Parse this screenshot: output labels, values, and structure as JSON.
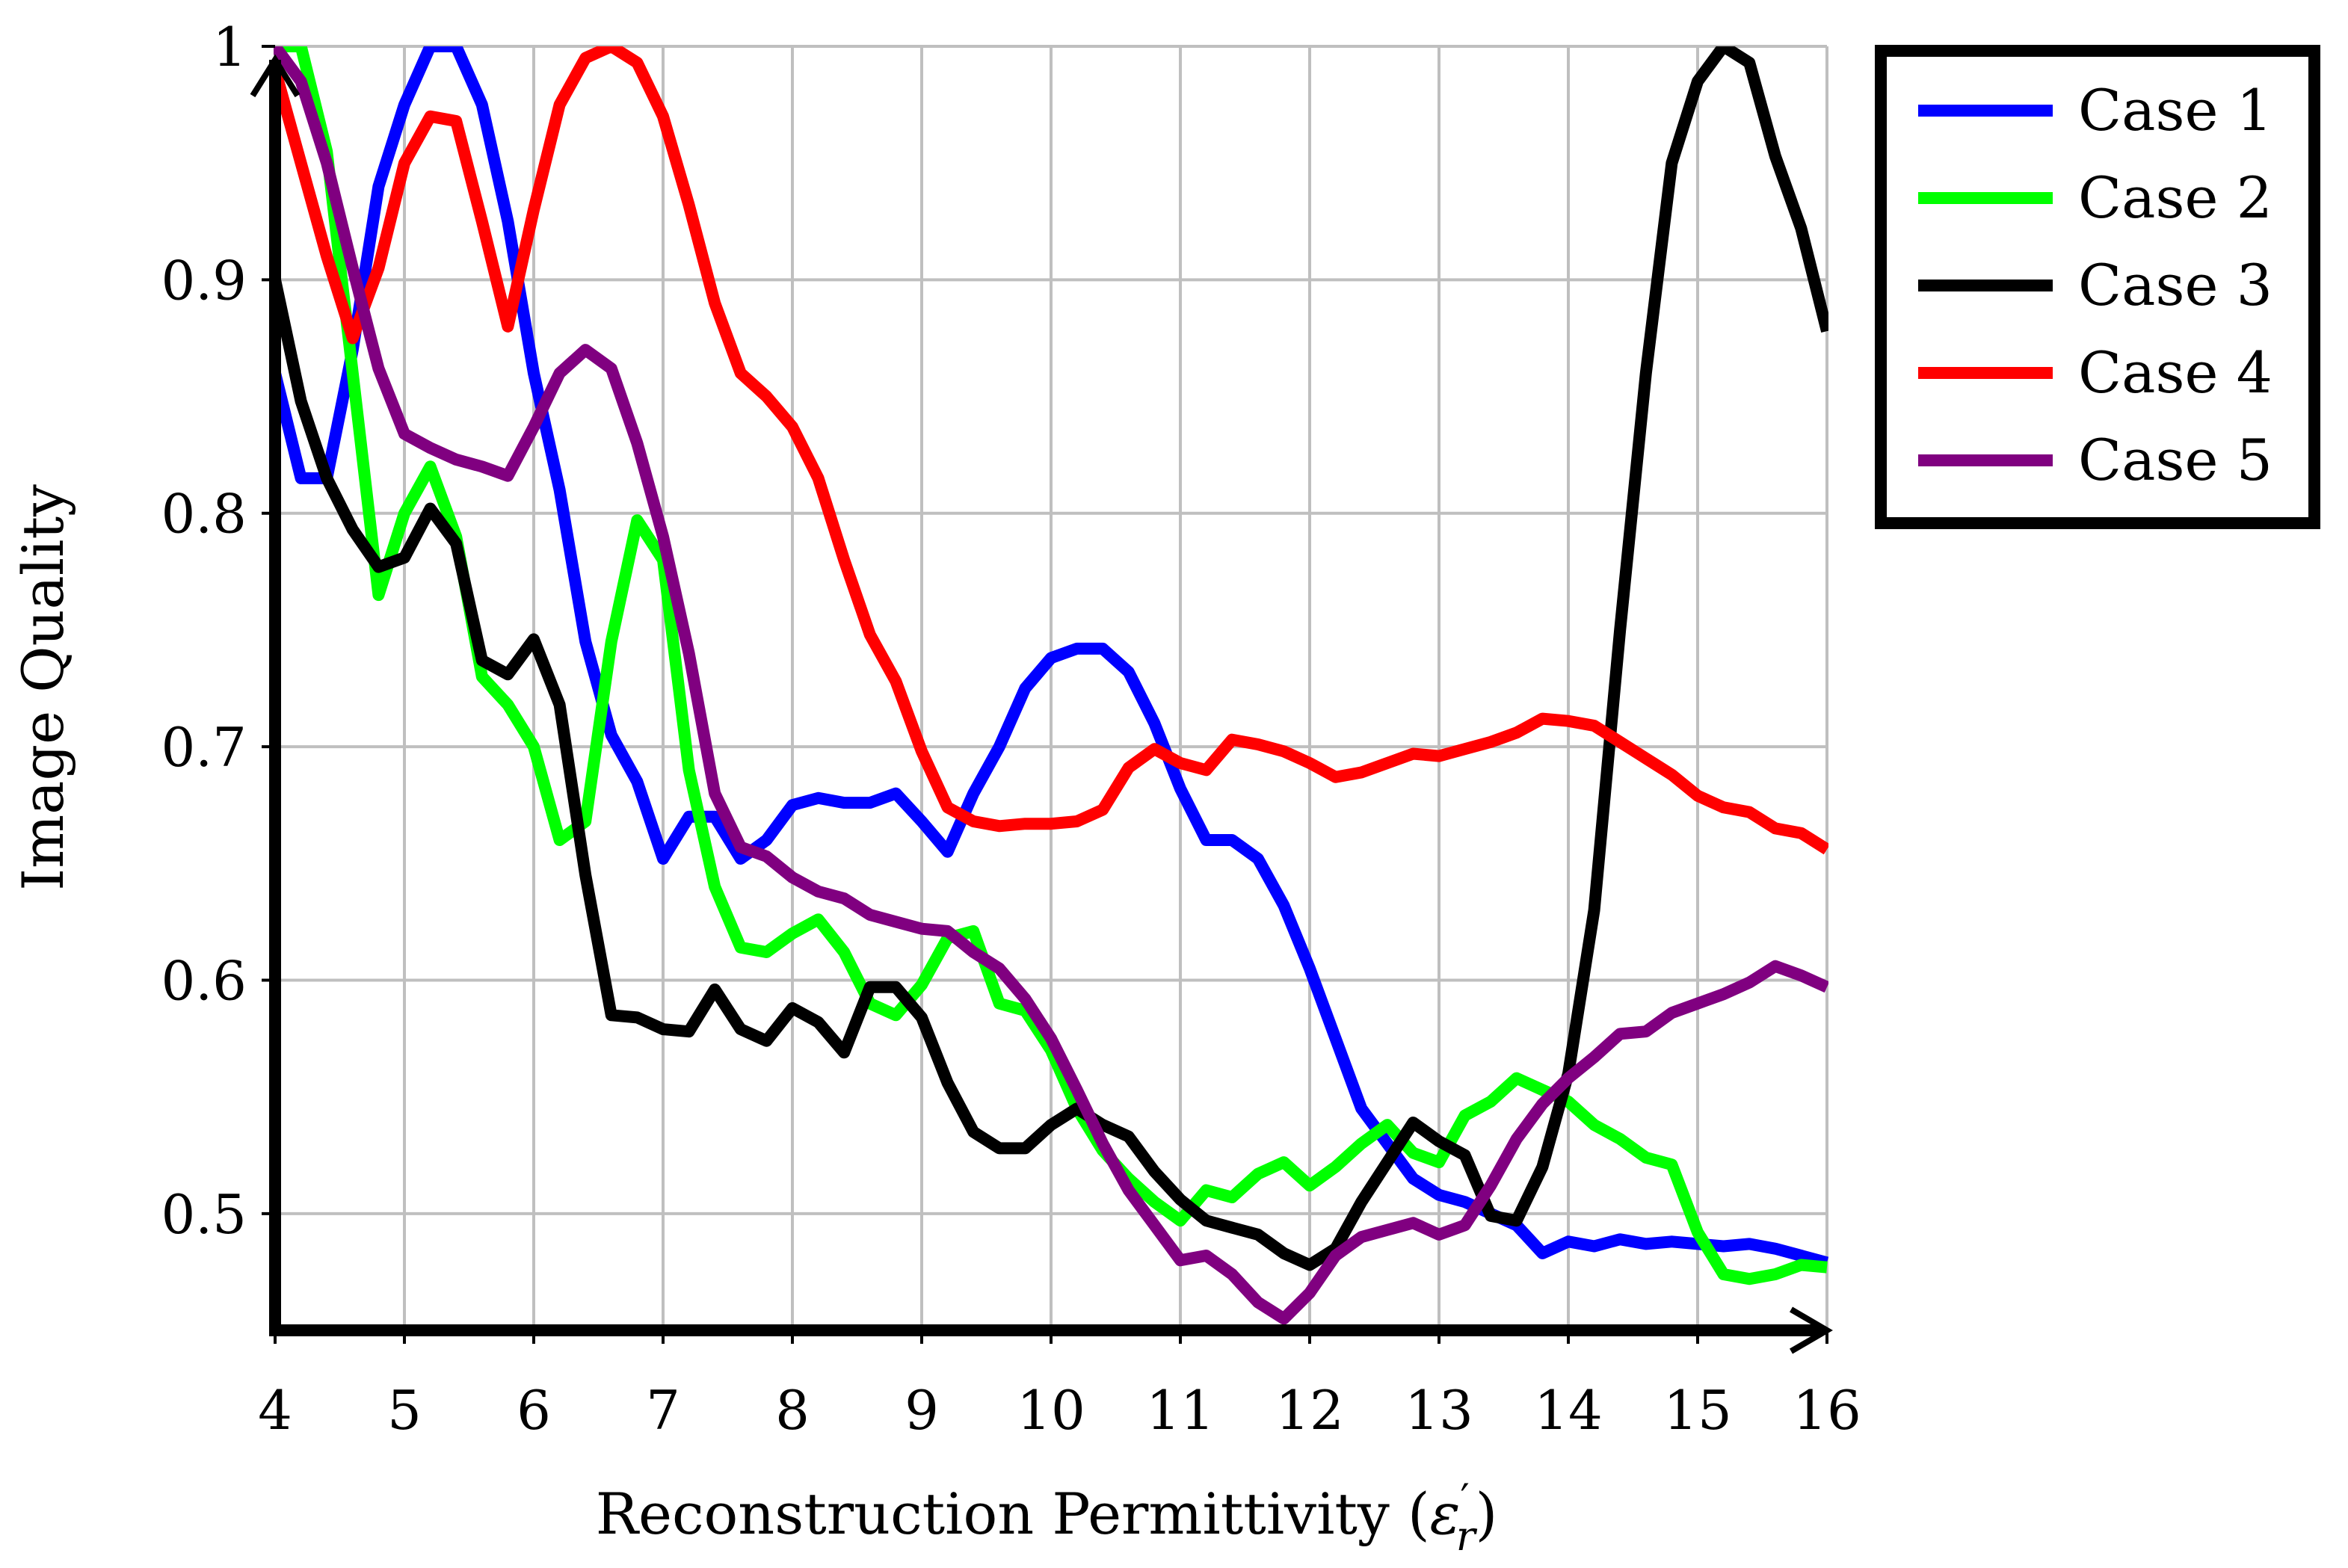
{
  "chart_data": {
    "type": "line",
    "title": "",
    "xlabel": "Reconstruction Permittivity (ε′r)",
    "xlabel_main": "Reconstruction Permittivity (",
    "xlabel_symbol": "ε",
    "xlabel_prime": "′",
    "xlabel_sub": "r",
    "xlabel_close": ")",
    "ylabel": "Image Quality",
    "xlim": [
      4,
      16
    ],
    "ylim": [
      0.45,
      1.0
    ],
    "xticks": [
      4,
      5,
      6,
      7,
      8,
      9,
      10,
      11,
      12,
      13,
      14,
      15,
      16
    ],
    "xtick_labels": [
      "4",
      "5",
      "6",
      "7",
      "8",
      "9",
      "10",
      "11",
      "12",
      "13",
      "14",
      "15",
      "16"
    ],
    "yticks": [
      0.5,
      0.6,
      0.7,
      0.8,
      0.9,
      1.0
    ],
    "ytick_labels": [
      "0.5",
      "0.6",
      "0.7",
      "0.8",
      "0.9",
      "1"
    ],
    "grid": true,
    "legend_position": "outside-top-right",
    "x": [
      4.0,
      4.2,
      4.4,
      4.6,
      4.8,
      5.0,
      5.2,
      5.4,
      5.6,
      5.8,
      6.0,
      6.2,
      6.4,
      6.6,
      6.8,
      7.0,
      7.2,
      7.4,
      7.6,
      7.8,
      8.0,
      8.2,
      8.4,
      8.6,
      8.8,
      9.0,
      9.2,
      9.4,
      9.6,
      9.8,
      10.0,
      10.2,
      10.4,
      10.6,
      10.8,
      11.0,
      11.2,
      11.4,
      11.6,
      11.8,
      12.0,
      12.2,
      12.4,
      12.6,
      12.8,
      13.0,
      13.2,
      13.4,
      13.6,
      13.8,
      14.0,
      14.2,
      14.4,
      14.6,
      14.8,
      15.0,
      15.2,
      15.4,
      15.6,
      15.8,
      16.0
    ],
    "series": [
      {
        "name": "Case 1",
        "color": "#0000ff",
        "values": [
          0.86,
          0.815,
          0.815,
          0.87,
          0.94,
          0.975,
          1.0,
          1.0,
          0.975,
          0.925,
          0.86,
          0.81,
          0.745,
          0.705,
          0.685,
          0.652,
          0.67,
          0.67,
          0.652,
          0.66,
          0.675,
          0.678,
          0.676,
          0.676,
          0.68,
          0.668,
          0.655,
          0.68,
          0.7,
          0.725,
          0.738,
          0.742,
          0.742,
          0.732,
          0.71,
          0.682,
          0.66,
          0.66,
          0.652,
          0.632,
          0.605,
          0.575,
          0.545,
          0.53,
          0.515,
          0.508,
          0.505,
          0.5,
          0.495,
          0.483,
          0.488,
          0.486,
          0.489,
          0.487,
          0.488,
          0.487,
          0.486,
          0.487,
          0.485,
          0.482,
          0.479
        ]
      },
      {
        "name": "Case 2",
        "color": "#00ff00",
        "values": [
          1.0,
          1.0,
          0.955,
          0.86,
          0.765,
          0.8,
          0.82,
          0.79,
          0.73,
          0.718,
          0.7,
          0.66,
          0.668,
          0.745,
          0.797,
          0.78,
          0.69,
          0.64,
          0.614,
          0.612,
          0.62,
          0.626,
          0.612,
          0.59,
          0.585,
          0.598,
          0.618,
          0.621,
          0.59,
          0.587,
          0.57,
          0.545,
          0.527,
          0.515,
          0.505,
          0.497,
          0.51,
          0.507,
          0.517,
          0.522,
          0.512,
          0.52,
          0.53,
          0.538,
          0.526,
          0.522,
          0.542,
          0.548,
          0.558,
          0.553,
          0.548,
          0.538,
          0.532,
          0.524,
          0.521,
          0.492,
          0.474,
          0.472,
          0.474,
          0.478,
          0.477
        ]
      },
      {
        "name": "Case 3",
        "color": "#000000",
        "values": [
          0.9,
          0.848,
          0.815,
          0.793,
          0.777,
          0.781,
          0.802,
          0.787,
          0.737,
          0.731,
          0.746,
          0.718,
          0.645,
          0.585,
          0.584,
          0.579,
          0.578,
          0.596,
          0.579,
          0.574,
          0.588,
          0.582,
          0.569,
          0.597,
          0.597,
          0.584,
          0.556,
          0.535,
          0.528,
          0.528,
          0.538,
          0.545,
          0.538,
          0.533,
          0.518,
          0.506,
          0.497,
          0.494,
          0.491,
          0.483,
          0.478,
          0.485,
          0.505,
          0.522,
          0.539,
          0.531,
          0.525,
          0.499,
          0.497,
          0.52,
          0.56,
          0.63,
          0.75,
          0.86,
          0.95,
          0.985,
          1.0,
          0.993,
          0.953,
          0.922,
          0.878
        ]
      },
      {
        "name": "Case 4",
        "color": "#ff0000",
        "values": [
          0.99,
          0.95,
          0.91,
          0.875,
          0.905,
          0.95,
          0.97,
          0.968,
          0.925,
          0.88,
          0.93,
          0.975,
          0.995,
          1.0,
          0.993,
          0.97,
          0.932,
          0.89,
          0.86,
          0.85,
          0.837,
          0.815,
          0.78,
          0.748,
          0.728,
          0.698,
          0.674,
          0.668,
          0.666,
          0.667,
          0.667,
          0.668,
          0.673,
          0.691,
          0.699,
          0.693,
          0.69,
          0.703,
          0.701,
          0.698,
          0.693,
          0.687,
          0.689,
          0.693,
          0.697,
          0.696,
          0.699,
          0.702,
          0.706,
          0.712,
          0.711,
          0.709,
          0.702,
          0.695,
          0.688,
          0.679,
          0.674,
          0.672,
          0.665,
          0.663,
          0.656
        ]
      },
      {
        "name": "Case 5",
        "color": "#800080",
        "values": [
          1.0,
          0.985,
          0.95,
          0.905,
          0.862,
          0.834,
          0.828,
          0.823,
          0.82,
          0.816,
          0.837,
          0.86,
          0.87,
          0.862,
          0.83,
          0.79,
          0.74,
          0.68,
          0.657,
          0.653,
          0.644,
          0.638,
          0.635,
          0.628,
          0.625,
          0.622,
          0.621,
          0.612,
          0.605,
          0.592,
          0.575,
          0.553,
          0.53,
          0.51,
          0.495,
          0.48,
          0.482,
          0.474,
          0.462,
          0.455,
          0.466,
          0.482,
          0.49,
          0.493,
          0.496,
          0.491,
          0.495,
          0.512,
          0.532,
          0.547,
          0.558,
          0.567,
          0.577,
          0.578,
          0.586,
          0.59,
          0.594,
          0.599,
          0.606,
          0.602,
          0.597
        ]
      }
    ]
  }
}
